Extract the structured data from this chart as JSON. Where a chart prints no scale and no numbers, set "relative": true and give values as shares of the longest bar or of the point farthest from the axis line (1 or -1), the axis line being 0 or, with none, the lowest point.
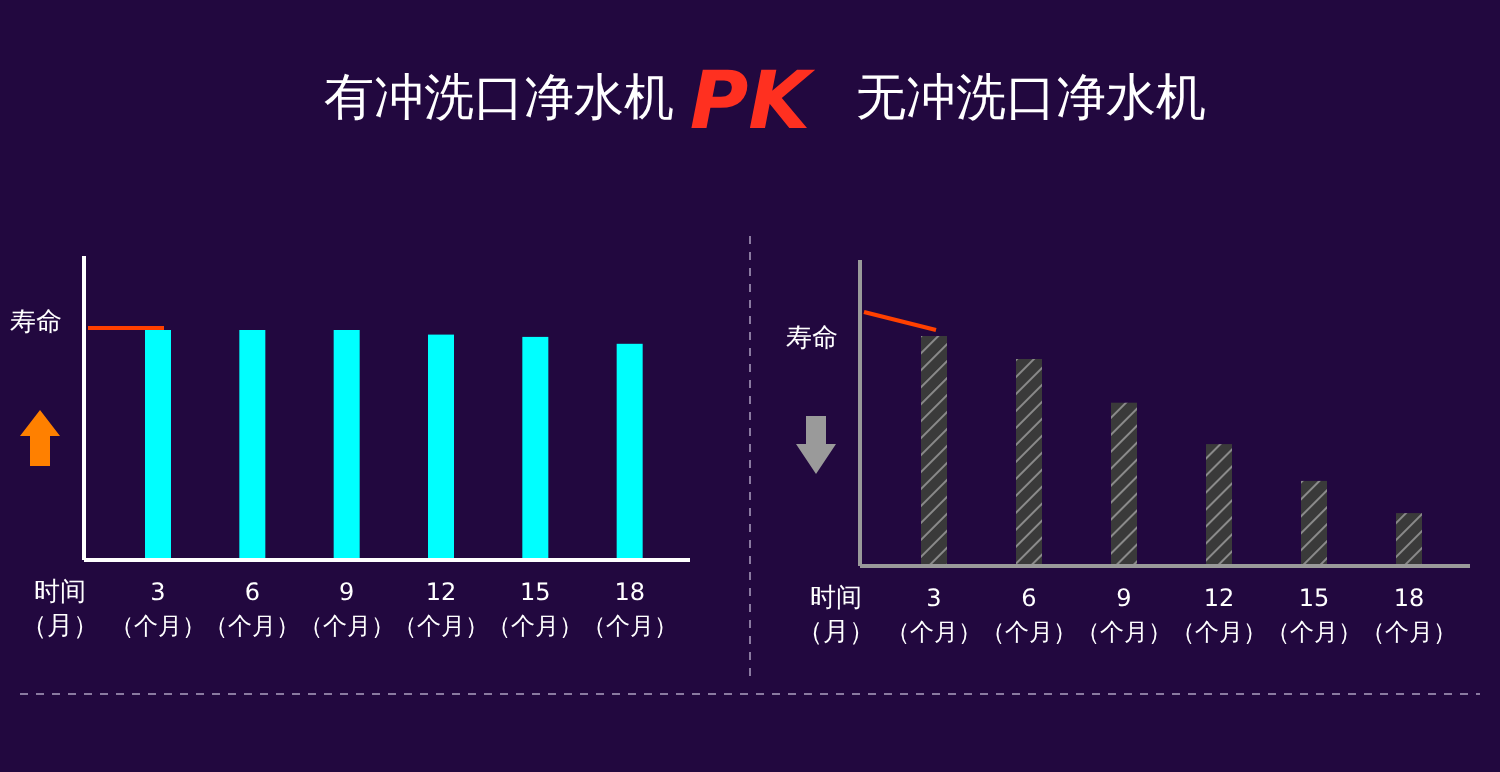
{
  "chart_data": [
    {
      "type": "bar",
      "title": "有冲洗口净水机",
      "annotations": [
        "PK"
      ],
      "ylabel": "寿命",
      "xlabel": "时间（月）",
      "relative": true,
      "categories": [
        "3（个月）",
        "6（个月）",
        "9（个月）",
        "12（个月）",
        "15（个月）",
        "18（个月）"
      ],
      "series": [
        {
          "color": "#00ffff",
          "values": [
            1,
            1,
            1,
            0.98,
            0.97,
            0.94
          ]
        }
      ]
    },
    {
      "type": "bar",
      "title": "无冲洗口净水机",
      "ylabel": "寿命",
      "xlabel": "时间（月）",
      "relative": true,
      "categories": [
        "3（个月）",
        "6（个月）",
        "9（个月）",
        "12（个月）",
        "15（个月）",
        "18（个月）"
      ],
      "series": [
        {
          "color": "#3a3a3a",
          "values": [
            1,
            0.9,
            0.71,
            0.53,
            0.37,
            0.23
          ]
        }
      ]
    }
  ]
}
